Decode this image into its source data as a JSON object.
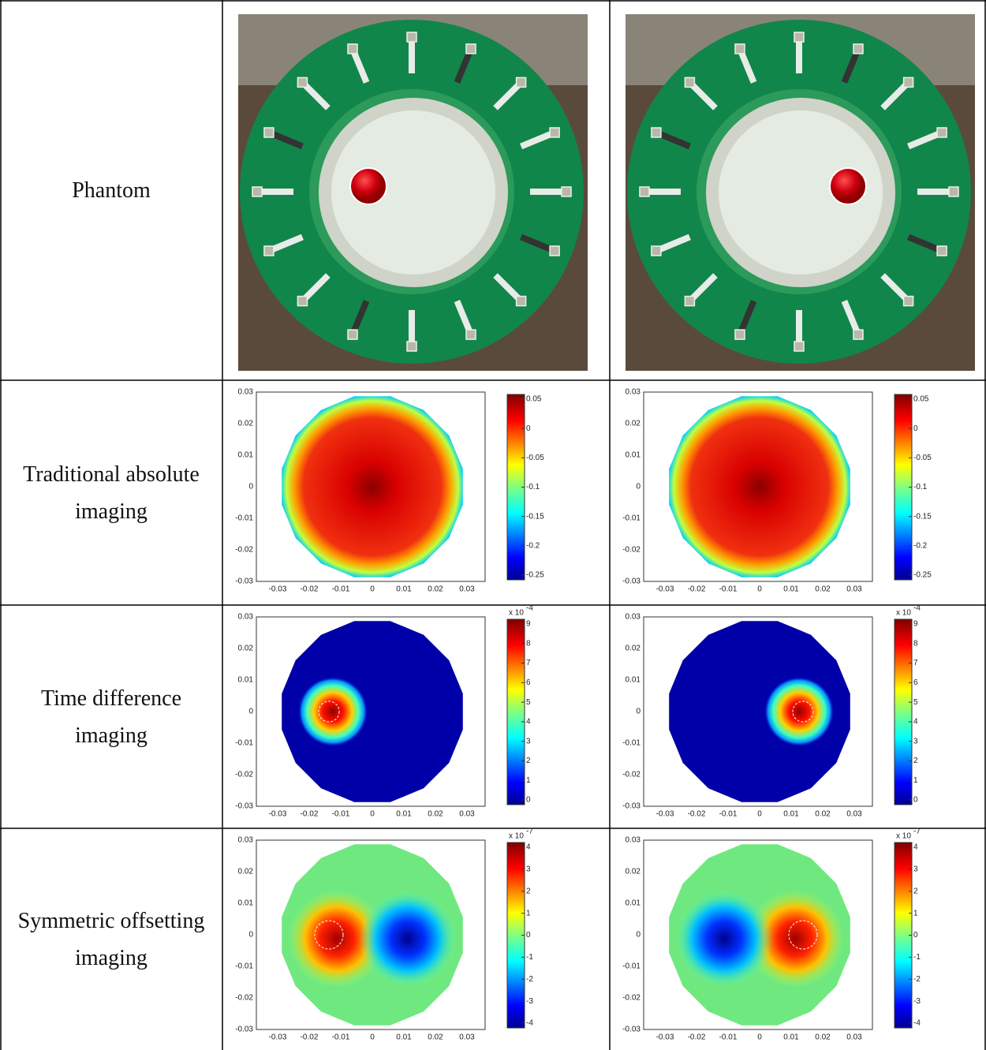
{
  "rows": [
    {
      "label": "Phantom"
    },
    {
      "label": "Traditional absolute imaging",
      "plots": [
        {
          "colorbar_ticks": [
            "0.05",
            "0",
            "-0.05",
            "-0.1",
            "-0.15",
            "-0.2",
            "-0.25"
          ]
        },
        {
          "colorbar_ticks": [
            "0.05",
            "0",
            "-0.05",
            "-0.1",
            "-0.15",
            "-0.2",
            "-0.25"
          ]
        }
      ]
    },
    {
      "label": "Time difference imaging",
      "plots": [
        {
          "colorbar_ticks": [
            "9",
            "8",
            "7",
            "6",
            "5",
            "4",
            "3",
            "2",
            "1",
            "0"
          ],
          "colorbar_scale": {
            "base": "x 10",
            "power": "-4"
          }
        },
        {
          "colorbar_ticks": [
            "9",
            "8",
            "7",
            "6",
            "5",
            "4",
            "3",
            "2",
            "1",
            "0"
          ],
          "colorbar_scale": {
            "base": "x 10",
            "power": "-4"
          }
        }
      ]
    },
    {
      "label": "Symmetric offsetting imaging",
      "plots": [
        {
          "colorbar_ticks": [
            "4",
            "3",
            "2",
            "1",
            "0",
            "-1",
            "-2",
            "-3",
            "-4"
          ],
          "colorbar_scale": {
            "base": "x 10",
            "power": "-7"
          }
        },
        {
          "colorbar_ticks": [
            "4",
            "3",
            "2",
            "1",
            "0",
            "-1",
            "-2",
            "-3",
            "-4"
          ],
          "colorbar_scale": {
            "base": "x 10",
            "power": "-7"
          }
        }
      ]
    }
  ],
  "axis_ticks": [
    "-0.03",
    "-0.02",
    "-0.01",
    "0",
    "0.01",
    "0.02",
    "0.03"
  ]
}
